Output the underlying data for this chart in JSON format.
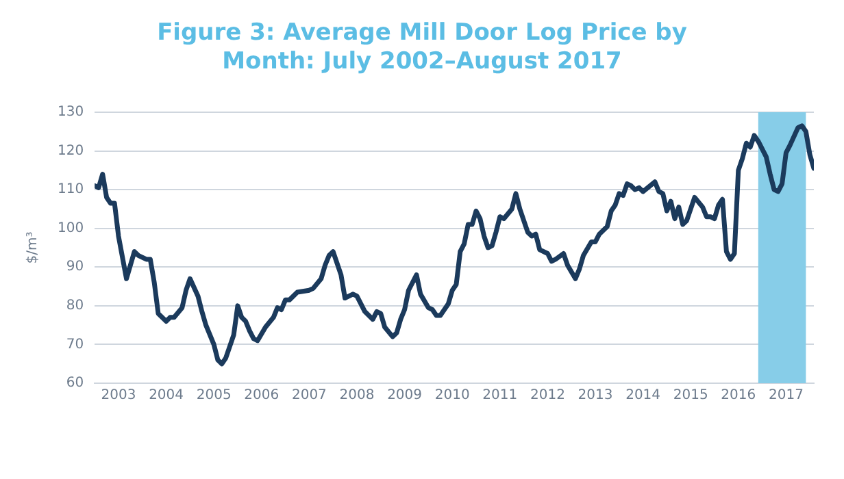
{
  "chart_data": {
    "type": "line",
    "title": "Figure 3: Average Mill Door Log Price by Month: July 2002–August 2017",
    "ylabel": "$/m³",
    "x": [
      "2002-07",
      "2002-08",
      "2002-09",
      "2002-10",
      "2002-11",
      "2002-12",
      "2003-01",
      "2003-03",
      "2003-05",
      "2003-06",
      "2003-08",
      "2003-09",
      "2003-10",
      "2003-11",
      "2004-01",
      "2004-02",
      "2004-03",
      "2004-05",
      "2004-06",
      "2004-07",
      "2004-09",
      "2004-10",
      "2004-11",
      "2005-01",
      "2005-02",
      "2005-03",
      "2005-04",
      "2005-06",
      "2005-07",
      "2005-08",
      "2005-09",
      "2005-10",
      "2005-11",
      "2005-12",
      "2006-02",
      "2006-04",
      "2006-05",
      "2006-06",
      "2006-07",
      "2006-08",
      "2006-10",
      "2007-01",
      "2007-02",
      "2007-04",
      "2007-05",
      "2007-06",
      "2007-07",
      "2007-09",
      "2007-10",
      "2007-12",
      "2008-01",
      "2008-03",
      "2008-05",
      "2008-06",
      "2008-07",
      "2008-08",
      "2008-10",
      "2008-11",
      "2008-12",
      "2009-01",
      "2009-02",
      "2009-04",
      "2009-05",
      "2009-07",
      "2009-08",
      "2009-09",
      "2009-10",
      "2009-12",
      "2010-01",
      "2010-02",
      "2010-03",
      "2010-04",
      "2010-05",
      "2010-06",
      "2010-07",
      "2010-08",
      "2010-09",
      "2010-10",
      "2010-11",
      "2010-12",
      "2011-01",
      "2011-02",
      "2011-04",
      "2011-05",
      "2011-06",
      "2011-08",
      "2011-09",
      "2011-10",
      "2011-11",
      "2012-01",
      "2012-02",
      "2012-03",
      "2012-05",
      "2012-06",
      "2012-08",
      "2012-09",
      "2012-10",
      "2012-12",
      "2013-01",
      "2013-02",
      "2013-04",
      "2013-05",
      "2013-06",
      "2013-07",
      "2013-08",
      "2013-09",
      "2013-10",
      "2013-11",
      "2013-12",
      "2014-01",
      "2014-04",
      "2014-05",
      "2014-06",
      "2014-07",
      "2014-08",
      "2014-09",
      "2014-10",
      "2014-11",
      "2014-12",
      "2015-02",
      "2015-04",
      "2015-05",
      "2015-06",
      "2015-07",
      "2015-08",
      "2015-09",
      "2015-10",
      "2015-11",
      "2015-12",
      "2016-01",
      "2016-02",
      "2016-03",
      "2016-04",
      "2016-05",
      "2016-06",
      "2016-08",
      "2016-09",
      "2016-10",
      "2016-11",
      "2016-12",
      "2017-01",
      "2017-02",
      "2017-04",
      "2017-05",
      "2017-06",
      "2017-07",
      "2017-08"
    ],
    "series": [
      {
        "color": "#1b3a5c",
        "values": [
          111,
          110.5,
          114,
          108,
          106.5,
          106.5,
          98,
          87,
          94,
          93,
          92,
          92,
          86,
          78,
          76,
          77,
          77,
          79.5,
          84,
          87,
          82.5,
          78.5,
          75,
          70,
          66,
          65,
          66.5,
          72.5,
          80,
          77,
          76,
          73.5,
          71.5,
          71,
          74.5,
          77,
          79.5,
          79,
          81.5,
          81.5,
          83.5,
          84,
          84.5,
          87,
          90.5,
          93,
          94,
          88,
          82,
          83,
          82.5,
          78.5,
          76.5,
          78.5,
          78,
          74.5,
          72,
          73,
          76.5,
          79,
          84,
          88,
          83,
          79.5,
          79,
          77.5,
          77.5,
          80.5,
          84,
          85.5,
          94,
          96,
          101,
          101,
          104.5,
          102.5,
          98,
          95,
          95.5,
          99,
          103,
          102.5,
          105,
          109,
          105,
          99,
          98,
          98.5,
          94.5,
          93.5,
          91.5,
          92,
          93.5,
          90.5,
          87,
          89.5,
          93,
          96.5,
          96.5,
          98.5,
          100.5,
          104.5,
          106,
          109,
          108.5,
          111.5,
          111,
          110,
          110.5,
          109.5,
          112,
          109.5,
          109,
          104.5,
          107,
          102.5,
          105.5,
          101,
          102,
          108,
          105.5,
          103,
          103,
          102.5,
          106,
          107.5,
          94,
          92,
          93.5,
          115,
          118,
          122,
          121,
          124,
          122.5,
          118.5,
          114,
          110,
          109.5,
          111.5,
          119.5,
          121.5,
          126,
          126.5,
          125,
          119,
          115.5
        ]
      }
    ],
    "xlim": [
      "2002-07",
      "2017-08"
    ],
    "xticks": [
      "2003",
      "2004",
      "2005",
      "2006",
      "2007",
      "2008",
      "2009",
      "2010",
      "2011",
      "2012",
      "2013",
      "2014",
      "2015",
      "2016",
      "2017"
    ],
    "ylim": [
      60,
      130
    ],
    "yticks": [
      60,
      70,
      80,
      90,
      100,
      110,
      120,
      130
    ],
    "bands": [
      {
        "axis": "x",
        "from": "2016-06",
        "to": "2017-06",
        "color": "#87cde8"
      }
    ],
    "grid": "y",
    "legend": false,
    "marker": "none",
    "line_style": "solid"
  }
}
